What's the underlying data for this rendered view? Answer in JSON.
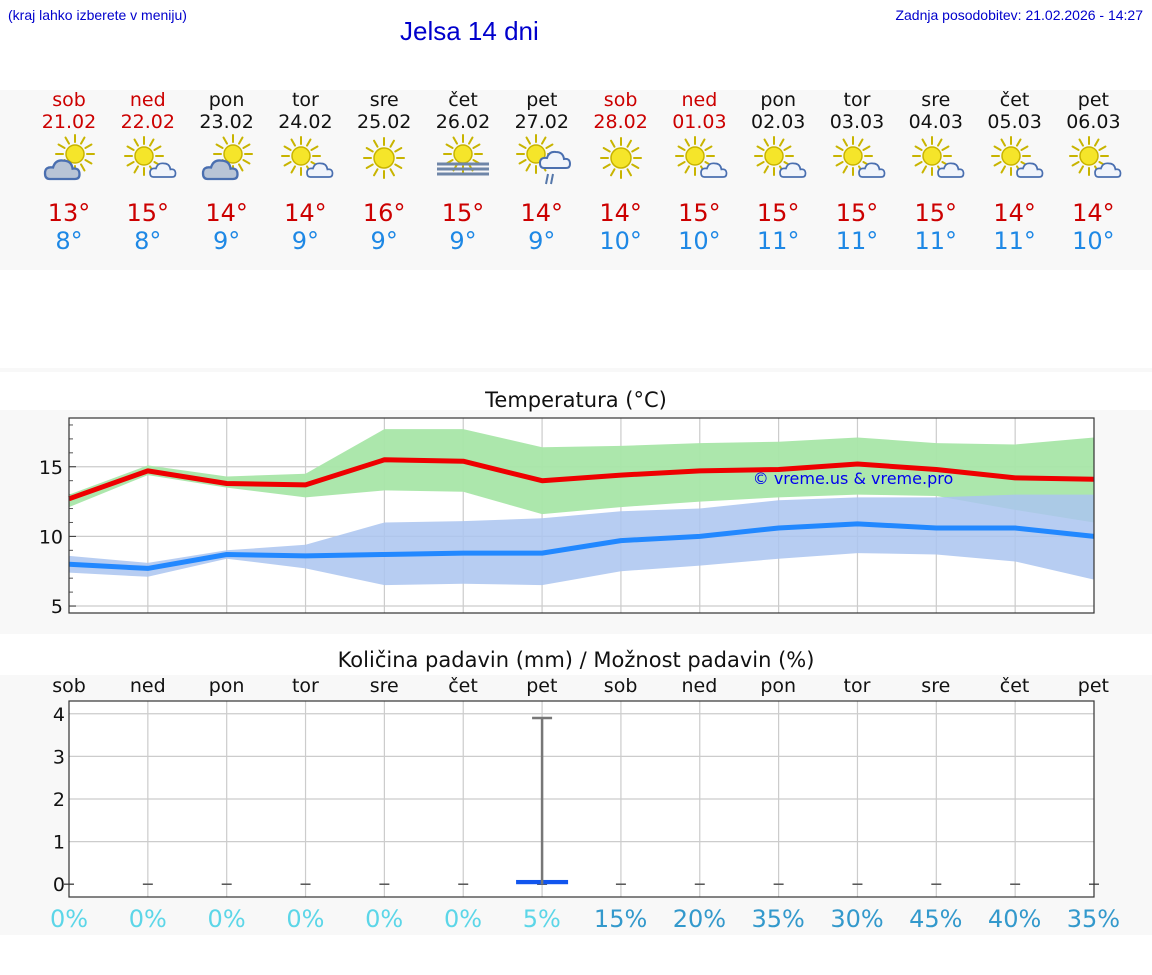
{
  "header": {
    "note": "(kraj lahko izberete v meniju)",
    "title": "Jelsa 14 dni",
    "updated": "Zadnja posodobitev: 21.02.2026 - 14:27"
  },
  "days": [
    {
      "name": "sob",
      "date": "21.02",
      "weekend": true,
      "icon": "partly-cloudy",
      "max": "13°",
      "min": "8°"
    },
    {
      "name": "ned",
      "date": "22.02",
      "weekend": true,
      "icon": "sun-small-cloud",
      "max": "15°",
      "min": "8°"
    },
    {
      "name": "pon",
      "date": "23.02",
      "weekend": false,
      "icon": "partly-cloudy",
      "max": "14°",
      "min": "9°"
    },
    {
      "name": "tor",
      "date": "24.02",
      "weekend": false,
      "icon": "sun-small-cloud",
      "max": "14°",
      "min": "9°"
    },
    {
      "name": "sre",
      "date": "25.02",
      "weekend": false,
      "icon": "sun",
      "max": "16°",
      "min": "9°"
    },
    {
      "name": "čet",
      "date": "26.02",
      "weekend": false,
      "icon": "sun-fog",
      "max": "15°",
      "min": "9°"
    },
    {
      "name": "pet",
      "date": "27.02",
      "weekend": false,
      "icon": "sun-rain",
      "max": "14°",
      "min": "9°"
    },
    {
      "name": "sob",
      "date": "28.02",
      "weekend": true,
      "icon": "sun",
      "max": "14°",
      "min": "10°"
    },
    {
      "name": "ned",
      "date": "01.03",
      "weekend": true,
      "icon": "sun-small-cloud",
      "max": "15°",
      "min": "10°"
    },
    {
      "name": "pon",
      "date": "02.03",
      "weekend": false,
      "icon": "sun-small-cloud",
      "max": "15°",
      "min": "11°"
    },
    {
      "name": "tor",
      "date": "03.03",
      "weekend": false,
      "icon": "sun-small-cloud",
      "max": "15°",
      "min": "11°"
    },
    {
      "name": "sre",
      "date": "04.03",
      "weekend": false,
      "icon": "sun-small-cloud",
      "max": "15°",
      "min": "11°"
    },
    {
      "name": "čet",
      "date": "05.03",
      "weekend": false,
      "icon": "sun-small-cloud",
      "max": "14°",
      "min": "11°"
    },
    {
      "name": "pet",
      "date": "06.03",
      "weekend": false,
      "icon": "sun-small-cloud",
      "max": "14°",
      "min": "10°"
    }
  ],
  "colors": {
    "weekend": "#cc0000",
    "maxTemp": "#cc0000",
    "minTemp": "#1e88e5",
    "maxLine": "#ee0000",
    "minLine": "#2288ff",
    "maxBand": "#a8e6a8",
    "minBand": "#aac4f0",
    "precipBar": "#1155ee",
    "pctLow": "#5cd6e8",
    "pctHigh": "#3399cc"
  },
  "chart_data": [
    {
      "type": "line",
      "title": "Temperatura (°C)",
      "watermark": "© vreme.us & vreme.pro",
      "ylim": [
        4.5,
        18.5
      ],
      "yticks": [
        5,
        10,
        15
      ],
      "x": [
        0,
        1,
        2,
        3,
        4,
        5,
        6,
        7,
        8,
        9,
        10,
        11,
        12,
        13
      ],
      "series": [
        {
          "name": "max",
          "values": [
            12.7,
            14.7,
            13.8,
            13.7,
            15.5,
            15.4,
            14.0,
            14.4,
            14.7,
            14.8,
            15.2,
            14.8,
            14.2,
            14.1
          ]
        },
        {
          "name": "max_high",
          "values": [
            13.0,
            15.1,
            14.3,
            14.5,
            17.7,
            17.7,
            16.4,
            16.5,
            16.7,
            16.8,
            17.1,
            16.7,
            16.6,
            17.1
          ]
        },
        {
          "name": "max_low",
          "values": [
            12.1,
            14.4,
            13.5,
            12.8,
            13.3,
            13.2,
            11.6,
            12.1,
            12.5,
            12.8,
            13.0,
            12.9,
            11.9,
            11.0
          ]
        },
        {
          "name": "min",
          "values": [
            8.0,
            7.7,
            8.7,
            8.6,
            8.7,
            8.8,
            8.8,
            9.7,
            10.0,
            10.6,
            10.9,
            10.6,
            10.6,
            10.0
          ]
        },
        {
          "name": "min_high",
          "values": [
            8.6,
            8.1,
            9.0,
            9.4,
            11.0,
            11.1,
            11.3,
            11.8,
            12.0,
            12.6,
            12.8,
            12.8,
            13.0,
            13.0
          ]
        },
        {
          "name": "min_low",
          "values": [
            7.4,
            7.1,
            8.4,
            7.7,
            6.5,
            6.6,
            6.5,
            7.5,
            7.9,
            8.4,
            8.8,
            8.7,
            8.2,
            6.9
          ]
        }
      ]
    },
    {
      "type": "bar",
      "title": "Količina padavin (mm) / Možnost padavin (%)",
      "ylim": [
        -0.3,
        4.3
      ],
      "yticks": [
        0,
        1,
        2,
        3,
        4
      ],
      "categories": [
        "sob",
        "ned",
        "pon",
        "tor",
        "sre",
        "čet",
        "pet",
        "sob",
        "ned",
        "pon",
        "tor",
        "sre",
        "čet",
        "pet"
      ],
      "values": [
        0,
        0,
        0,
        0,
        0,
        0,
        0.1,
        0,
        0,
        0,
        0,
        0,
        0,
        0
      ],
      "range_max": [
        0,
        0,
        0,
        0,
        0,
        0,
        3.9,
        0,
        0,
        0,
        0,
        0,
        0,
        0
      ],
      "chance": [
        "0%",
        "0%",
        "0%",
        "0%",
        "0%",
        "0%",
        "5%",
        "15%",
        "20%",
        "35%",
        "30%",
        "45%",
        "40%",
        "35%"
      ]
    }
  ]
}
